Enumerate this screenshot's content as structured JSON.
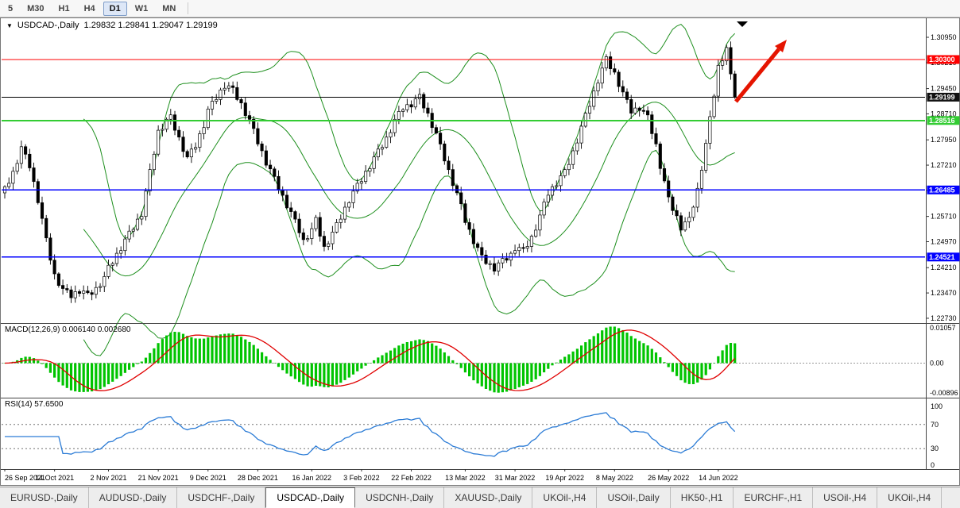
{
  "toolbar": {
    "periods": [
      {
        "label": "5",
        "active": false
      },
      {
        "label": "M30",
        "active": false
      },
      {
        "label": "H1",
        "active": false
      },
      {
        "label": "H4",
        "active": false
      },
      {
        "label": "D1",
        "active": true
      },
      {
        "label": "W1",
        "active": false
      },
      {
        "label": "MN",
        "active": false
      }
    ]
  },
  "chart_data": {
    "type": "candlestick",
    "symbol": "USDCAD-,Daily",
    "ohlc_display": "1.29832 1.29841 1.29047 1.29199",
    "open": 1.29832,
    "high": 1.29841,
    "low": 1.29047,
    "close": 1.29199,
    "x_labels": [
      "26 Sep 2021",
      "14 Oct 2021",
      "2 Nov 2021",
      "21 Nov 2021",
      "9 Dec 2021",
      "28 Dec 2021",
      "16 Jan 2022",
      "3 Feb 2022",
      "22 Feb 2022",
      "13 Mar 2022",
      "31 Mar 2022",
      "19 Apr 2022",
      "8 May 2022",
      "26 May 2022",
      "14 Jun 2022"
    ],
    "x_label_bars": [
      0,
      12,
      25,
      37,
      49,
      61,
      74,
      86,
      98,
      111,
      123,
      135,
      147,
      160,
      172
    ],
    "price_axis_ticks": [
      "1.30950",
      "1.30210",
      "1.29450",
      "1.28710",
      "1.27950",
      "1.27210",
      "1.26470",
      "1.25710",
      "1.24970",
      "1.24210",
      "1.23470",
      "1.22730"
    ],
    "candles": {
      "first_open": 1.264,
      "closes": [
        1.2658,
        1.2668,
        1.2703,
        1.2726,
        1.2775,
        1.2753,
        1.2713,
        1.2673,
        1.2611,
        1.2565,
        1.2508,
        1.2443,
        1.2403,
        1.2369,
        1.236,
        1.2356,
        1.2333,
        1.2351,
        1.2346,
        1.2353,
        1.2348,
        1.2343,
        1.2363,
        1.2366,
        1.2395,
        1.2428,
        1.2433,
        1.2463,
        1.2471,
        1.2505,
        1.2528,
        1.2533,
        1.2563,
        1.2571,
        1.2645,
        1.2708,
        1.2753,
        1.2823,
        1.2826,
        1.2855,
        1.2868,
        1.2823,
        1.2803,
        1.2761,
        1.2745,
        1.2768,
        1.2773,
        1.2813,
        1.2831,
        1.2885,
        1.2908,
        1.2913,
        1.2941,
        1.2946,
        1.2953,
        1.2948,
        1.2913,
        1.2903,
        1.2866,
        1.2855,
        1.2828,
        1.2783,
        1.2763,
        1.2721,
        1.271,
        1.2688,
        1.2648,
        1.2633,
        1.2596,
        1.2585,
        1.2563,
        1.2523,
        1.2503,
        1.2506,
        1.2535,
        1.2568,
        1.2513,
        1.2483,
        1.2491,
        1.2525,
        1.2553,
        1.2563,
        1.2598,
        1.2611,
        1.2645,
        1.2668,
        1.2673,
        1.2703,
        1.2711,
        1.2745,
        1.2768,
        1.2773,
        1.2803,
        1.2816,
        1.2855,
        1.2878,
        1.2883,
        1.2898,
        1.2891,
        1.2915,
        1.2928,
        1.2888,
        1.2873,
        1.2831,
        1.2815,
        1.2783,
        1.2733,
        1.2708,
        1.2661,
        1.264,
        1.2608,
        1.2553,
        1.2533,
        1.2491,
        1.248,
        1.2458,
        1.2433,
        1.2433,
        1.2411,
        1.2435,
        1.2448,
        1.2443,
        1.2463,
        1.2471,
        1.248,
        1.2478,
        1.2483,
        1.2513,
        1.2531,
        1.2575,
        1.2613,
        1.2633,
        1.2658,
        1.2661,
        1.269,
        1.2708,
        1.2723,
        1.2763,
        1.2786,
        1.2835,
        1.2873,
        1.2893,
        1.2938,
        1.2961,
        1.3005,
        1.3038,
        1.3003,
        1.2993,
        1.2951,
        1.2935,
        1.2913,
        1.2873,
        1.2888,
        1.2881,
        1.288,
        1.2868,
        1.2813,
        1.2783,
        1.2711,
        1.2675,
        1.2628,
        1.2588,
        1.2573,
        1.2531,
        1.2555,
        1.2568,
        1.2598,
        1.2653,
        1.2706,
        1.2785,
        1.2863,
        1.2923,
        1.3013,
        1.3026,
        1.3065,
        1.2988,
        1.29199
      ]
    },
    "overlay": {
      "name": "Bollinger Bands",
      "period": 20,
      "deviation": 2,
      "color": "#1E8F1E"
    },
    "hlines": [
      {
        "label": "1.30300",
        "price": 1.303,
        "color": "#FF0000",
        "width": 1.4
      },
      {
        "label": "1.28516",
        "price": 1.28516,
        "color": "#33CC33",
        "width": 2
      },
      {
        "label": "1.26485",
        "price": 1.26485,
        "color": "#0000FF",
        "width": 1.6
      },
      {
        "label": "1.24521",
        "price": 1.24521,
        "color": "#0000FF",
        "width": 1.6
      }
    ],
    "current_price": {
      "label": "1.29199",
      "value": 1.29199,
      "color": "#000000"
    },
    "annotations": [
      {
        "type": "up-right-arrow",
        "color": "#E51400"
      },
      {
        "type": "down-triangle-marker",
        "color": "#000000"
      }
    ],
    "macd": {
      "label": "MACD(12,26,9) 0.006140 0.002680",
      "fast": 12,
      "slow": 26,
      "signal": 9,
      "value": 0.00614,
      "signal_value": 0.00268,
      "scale_labels": [
        "0.01057",
        "0.00",
        "-0.00896"
      ],
      "histogram_color": "#00C400",
      "signal_color": "#E00000"
    },
    "rsi": {
      "label": "RSI(14) 57.6500",
      "period": 14,
      "value": 57.65,
      "scale_labels": [
        "100",
        "70",
        "30",
        "0"
      ],
      "levels": [
        70,
        30
      ],
      "line_color": "#2C7CD6"
    }
  },
  "tabs": [
    {
      "label": "EURUSD-,Daily",
      "active": false
    },
    {
      "label": "AUDUSD-,Daily",
      "active": false
    },
    {
      "label": "USDCHF-,Daily",
      "active": false
    },
    {
      "label": "USDCAD-,Daily",
      "active": true
    },
    {
      "label": "USDCNH-,Daily",
      "active": false
    },
    {
      "label": "XAUUSD-,Daily",
      "active": false
    },
    {
      "label": "UKOil-,H4",
      "active": false
    },
    {
      "label": "USOil-,Daily",
      "active": false
    },
    {
      "label": "HK50-,H1",
      "active": false
    },
    {
      "label": "EURCHF-,H1",
      "active": false
    },
    {
      "label": "USOil-,H4",
      "active": false
    },
    {
      "label": "UKOil-,H4",
      "active": false
    }
  ]
}
